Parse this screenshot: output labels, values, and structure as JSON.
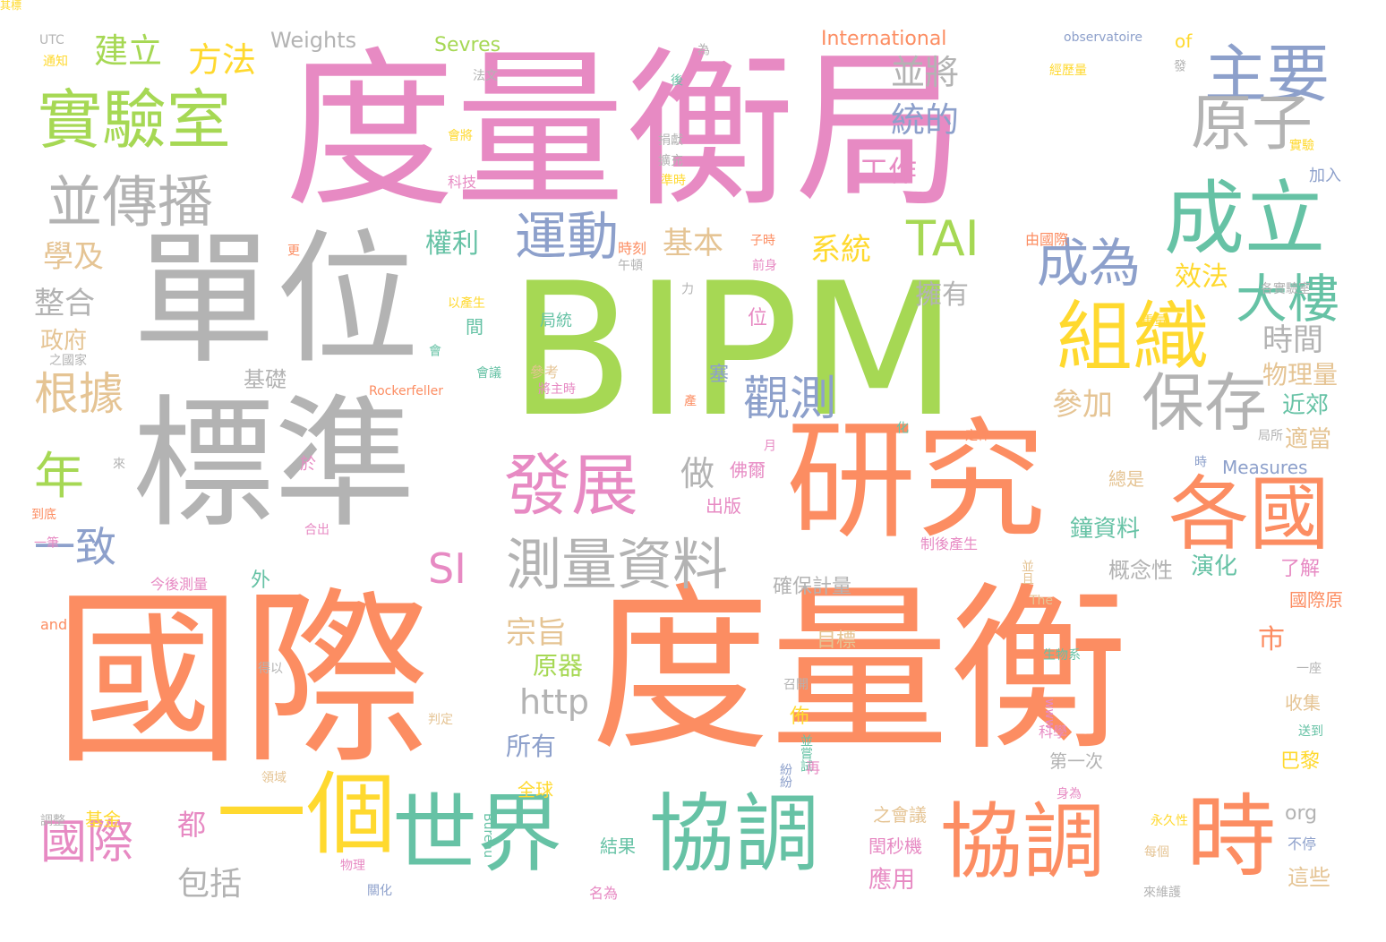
{
  "palette": {
    "pink": "#e78ac3",
    "green": "#a6d854",
    "gray": "#b3b3b3",
    "orange": "#fc8d62",
    "teal": "#66c2a5",
    "blue": "#8da0cb",
    "yellow": "#ffd92f",
    "tan": "#e5c494"
  },
  "words": [
    {
      "text": "度量衡局",
      "c": "pink"
    },
    {
      "text": "BIPM",
      "c": "green"
    },
    {
      "text": "單位",
      "c": "gray"
    },
    {
      "text": "標準",
      "c": "gray"
    },
    {
      "text": "國際",
      "c": "orange"
    },
    {
      "text": "度量衡",
      "c": "orange"
    },
    {
      "text": "研究",
      "c": "orange"
    },
    {
      "text": "世界",
      "c": "teal"
    },
    {
      "text": "協調",
      "c": "teal"
    },
    {
      "text": "協調",
      "c": "orange"
    },
    {
      "text": "時",
      "c": "orange"
    },
    {
      "text": "各國",
      "c": "orange"
    },
    {
      "text": "一個",
      "c": "yellow"
    },
    {
      "text": "成立",
      "c": "teal"
    },
    {
      "text": "組織",
      "c": "yellow"
    },
    {
      "text": "實驗室",
      "c": "green"
    },
    {
      "text": "主要",
      "c": "blue"
    },
    {
      "text": "原子",
      "c": "gray"
    },
    {
      "text": "發展",
      "c": "pink"
    },
    {
      "text": "保存",
      "c": "gray"
    },
    {
      "text": "測量資料",
      "c": "gray"
    },
    {
      "text": "並傳播",
      "c": "gray"
    },
    {
      "text": "運動",
      "c": "blue"
    },
    {
      "text": "成為",
      "c": "blue"
    },
    {
      "text": "大樓",
      "c": "teal"
    },
    {
      "text": "TAI",
      "c": "green"
    },
    {
      "text": "年",
      "c": "green"
    },
    {
      "text": "觀測",
      "c": "blue"
    },
    {
      "text": "國際",
      "c": "pink"
    },
    {
      "text": "SI",
      "c": "pink"
    },
    {
      "text": "根據",
      "c": "tan"
    },
    {
      "text": "一致",
      "c": "blue"
    },
    {
      "text": "建立",
      "c": "green"
    },
    {
      "text": "方法",
      "c": "yellow"
    },
    {
      "text": "並將",
      "c": "gray"
    },
    {
      "text": "統的",
      "c": "blue"
    },
    {
      "text": "工作",
      "c": "pink"
    },
    {
      "text": "基本",
      "c": "tan"
    },
    {
      "text": "系統",
      "c": "yellow"
    },
    {
      "text": "時間",
      "c": "gray"
    },
    {
      "text": "參加",
      "c": "tan"
    },
    {
      "text": "做",
      "c": "gray"
    },
    {
      "text": "學及",
      "c": "tan"
    },
    {
      "text": "整合",
      "c": "gray"
    },
    {
      "text": "政府",
      "c": "tan"
    },
    {
      "text": "權利",
      "c": "teal"
    },
    {
      "text": "擁有",
      "c": "gray"
    },
    {
      "text": "效法",
      "c": "yellow"
    },
    {
      "text": "物理量",
      "c": "tan"
    },
    {
      "text": "近郊",
      "c": "teal"
    },
    {
      "text": "適當",
      "c": "tan"
    },
    {
      "text": "Weights",
      "c": "gray"
    },
    {
      "text": "Sevres",
      "c": "green"
    },
    {
      "text": "International",
      "c": "orange"
    },
    {
      "text": "observatoire",
      "c": "blue"
    },
    {
      "text": "of",
      "c": "yellow"
    },
    {
      "text": "UTC",
      "c": "gray"
    },
    {
      "text": "通知",
      "c": "yellow"
    },
    {
      "text": "法文",
      "c": "gray"
    },
    {
      "text": "為",
      "c": "gray"
    },
    {
      "text": "後",
      "c": "teal"
    },
    {
      "text": "發",
      "c": "gray"
    },
    {
      "text": "經歷量",
      "c": "yellow"
    },
    {
      "text": "會將",
      "c": "yellow"
    },
    {
      "text": "捐獻",
      "c": "gray"
    },
    {
      "text": "擴充",
      "c": "gray"
    },
    {
      "text": "準時",
      "c": "yellow"
    },
    {
      "text": "科技",
      "c": "pink"
    },
    {
      "text": "實驗",
      "c": "yellow"
    },
    {
      "text": "加入",
      "c": "blue"
    },
    {
      "text": "由國際",
      "c": "orange"
    },
    {
      "text": "時刻",
      "c": "orange"
    },
    {
      "text": "子時",
      "c": "orange"
    },
    {
      "text": "午頓",
      "c": "gray"
    },
    {
      "text": "前身",
      "c": "pink"
    },
    {
      "text": "更",
      "c": "orange"
    },
    {
      "text": "力",
      "c": "gray"
    },
    {
      "text": "以產生",
      "c": "yellow"
    },
    {
      "text": "各實驗室",
      "c": "gray"
    },
    {
      "text": "重量",
      "c": "yellow"
    },
    {
      "text": "局統",
      "c": "teal"
    },
    {
      "text": "位",
      "c": "pink"
    },
    {
      "text": "間",
      "c": "teal"
    },
    {
      "text": "之國家",
      "c": "gray"
    },
    {
      "text": "基礎",
      "c": "gray"
    },
    {
      "text": "會",
      "c": "teal"
    },
    {
      "text": "會議",
      "c": "teal"
    },
    {
      "text": "參考",
      "c": "tan"
    },
    {
      "text": "將主時",
      "c": "pink"
    },
    {
      "text": "Rockerfeller",
      "c": "orange"
    },
    {
      "text": "塞",
      "c": "blue"
    },
    {
      "text": "產",
      "c": "orange"
    },
    {
      "text": "化",
      "c": "teal"
    },
    {
      "text": "定律",
      "c": "orange"
    },
    {
      "text": "局所",
      "c": "gray"
    },
    {
      "text": "月",
      "c": "pink"
    },
    {
      "text": "佛爾",
      "c": "pink"
    },
    {
      "text": "時",
      "c": "blue"
    },
    {
      "text": "Measures",
      "c": "blue"
    },
    {
      "text": "總是",
      "c": "tan"
    },
    {
      "text": "出版",
      "c": "pink"
    },
    {
      "text": "於",
      "c": "pink"
    },
    {
      "text": "來",
      "c": "gray"
    },
    {
      "text": "到底",
      "c": "orange"
    },
    {
      "text": "一筆",
      "c": "pink"
    },
    {
      "text": "合出",
      "c": "pink"
    },
    {
      "text": "制後產生",
      "c": "pink"
    },
    {
      "text": "鐘資料",
      "c": "teal"
    },
    {
      "text": "概念性",
      "c": "gray"
    },
    {
      "text": "演化",
      "c": "teal"
    },
    {
      "text": "了解",
      "c": "pink"
    },
    {
      "text": "並且",
      "c": "tan"
    },
    {
      "text": "外",
      "c": "teal"
    },
    {
      "text": "今後測量",
      "c": "pink"
    },
    {
      "text": "確保計量",
      "c": "gray"
    },
    {
      "text": "The",
      "c": "tan"
    },
    {
      "text": "國際原",
      "c": "orange"
    },
    {
      "text": "and",
      "c": "orange"
    },
    {
      "text": "宗旨",
      "c": "tan"
    },
    {
      "text": "原器",
      "c": "green"
    },
    {
      "text": "目標",
      "c": "tan"
    },
    {
      "text": "市",
      "c": "orange"
    },
    {
      "text": "生物系",
      "c": "teal"
    },
    {
      "text": "一座",
      "c": "gray"
    },
    {
      "text": "得以",
      "c": "gray"
    },
    {
      "text": "召開",
      "c": "gray"
    },
    {
      "text": "http",
      "c": "gray"
    },
    {
      "text": "收集",
      "c": "tan"
    },
    {
      "text": "判定",
      "c": "tan"
    },
    {
      "text": "www",
      "c": "pink"
    },
    {
      "text": "佈",
      "c": "yellow"
    },
    {
      "text": "所有",
      "c": "blue"
    },
    {
      "text": "並嘗試",
      "c": "teal"
    },
    {
      "text": "科學",
      "c": "pink"
    },
    {
      "text": "送到",
      "c": "teal"
    },
    {
      "text": "第一次",
      "c": "gray"
    },
    {
      "text": "巴黎",
      "c": "yellow"
    },
    {
      "text": "領域",
      "c": "tan"
    },
    {
      "text": "紛紛",
      "c": "blue"
    },
    {
      "text": "再",
      "c": "pink"
    },
    {
      "text": "全球",
      "c": "yellow"
    },
    {
      "text": "身為",
      "c": "pink"
    },
    {
      "text": "調整",
      "c": "gray"
    },
    {
      "text": "基金",
      "c": "yellow"
    },
    {
      "text": "Bureau",
      "c": "teal"
    },
    {
      "text": "都",
      "c": "pink"
    },
    {
      "text": "之會議",
      "c": "tan"
    },
    {
      "text": "永久性",
      "c": "yellow"
    },
    {
      "text": "org",
      "c": "gray"
    },
    {
      "text": "不停",
      "c": "blue"
    },
    {
      "text": "閏秒機",
      "c": "pink"
    },
    {
      "text": "結果",
      "c": "teal"
    },
    {
      "text": "每個",
      "c": "tan"
    },
    {
      "text": "物理",
      "c": "pink"
    },
    {
      "text": "應用",
      "c": "pink"
    },
    {
      "text": "這些",
      "c": "tan"
    },
    {
      "text": "包括",
      "c": "gray"
    },
    {
      "text": "關化",
      "c": "blue"
    },
    {
      "text": "名為",
      "c": "pink"
    },
    {
      "text": "來維護",
      "c": "gray"
    },
    {
      "text": "其標",
      "c": "yellow"
    }
  ]
}
